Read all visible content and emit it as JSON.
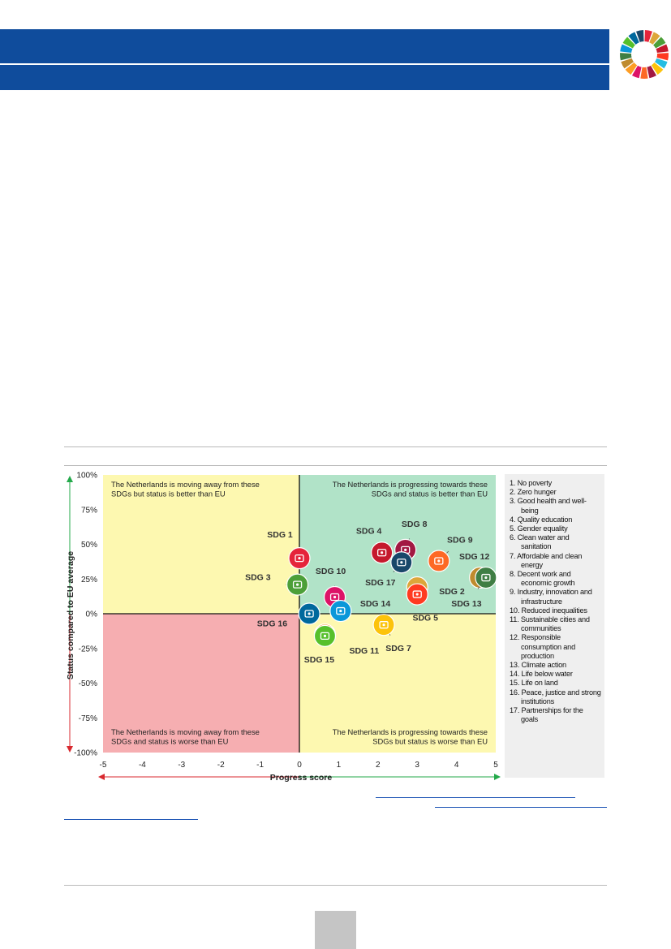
{
  "colors": {
    "header_blue": "#0f4c9c",
    "quadrant_yellow": "#fdf8b0",
    "quadrant_green": "#b1e3c8",
    "quadrant_red": "#f6aeb1",
    "arrow_green": "#23a94a",
    "arrow_red": "#d8292f",
    "link_blue": "#1f56b5"
  },
  "chart_data": {
    "type": "scatter",
    "xlabel": "Progress score",
    "ylabel": "Status compared to EU average",
    "xlim": [
      -5,
      5
    ],
    "ylim": [
      -100,
      100
    ],
    "x_ticks": [
      "-5",
      "-4",
      "-3",
      "-2",
      "-1",
      "0",
      "1",
      "2",
      "3",
      "4",
      "5"
    ],
    "y_ticks": [
      "100%",
      "75%",
      "50%",
      "25%",
      "0%",
      "-25%",
      "-50%",
      "-75%",
      "-100%"
    ],
    "grid": false,
    "quadrants": {
      "top_left": "The Netherlands is moving away from these SDGs but status is better than EU",
      "top_right": "The Netherlands is progressing towards these SDGs and status is better than EU",
      "bottom_left": "The Netherlands is moving away from these SDGs and status is worse than EU",
      "bottom_right": "The Netherlands is progressing towards these SDGs but status is worse than EU"
    },
    "points": [
      {
        "label": "SDG 1",
        "x": 0.0,
        "y": 40,
        "color": "#e5243b",
        "icon": "people-icon"
      },
      {
        "label": "SDG 2",
        "x": 3.0,
        "y": 19,
        "color": "#dda63a",
        "icon": "bowl-icon"
      },
      {
        "label": "SDG 3",
        "x": -0.05,
        "y": 21,
        "color": "#4c9f38",
        "icon": "heartbeat-icon"
      },
      {
        "label": "SDG 4",
        "x": 2.1,
        "y": 44,
        "color": "#c5192d",
        "icon": "book-icon"
      },
      {
        "label": "SDG 5",
        "x": 3.0,
        "y": 14,
        "color": "#ff3a21",
        "icon": "gender-icon"
      },
      {
        "label": "SDG 7",
        "x": 2.15,
        "y": -8,
        "color": "#fcc30b",
        "icon": "sun-icon"
      },
      {
        "label": "SDG 8",
        "x": 2.7,
        "y": 46,
        "color": "#a21942",
        "icon": "growth-icon"
      },
      {
        "label": "SDG 9",
        "x": 3.55,
        "y": 38,
        "color": "#fd6925",
        "icon": "cubes-icon"
      },
      {
        "label": "SDG 10",
        "x": 0.9,
        "y": 12,
        "color": "#dd1367",
        "icon": "equality-icon"
      },
      {
        "label": "SDG 11",
        "x": 0.65,
        "y": -15,
        "color": "#fd9d24",
        "icon": "buildings-icon"
      },
      {
        "label": "SDG 12",
        "x": 4.6,
        "y": 26,
        "color": "#bf8b2e",
        "icon": "infinity-icon"
      },
      {
        "label": "SDG 13",
        "x": 4.75,
        "y": 26,
        "color": "#3f7e44",
        "icon": "eye-icon"
      },
      {
        "label": "SDG 14",
        "x": 1.05,
        "y": 2,
        "color": "#0a97d9",
        "icon": "fish-icon"
      },
      {
        "label": "SDG 15",
        "x": 0.65,
        "y": -16,
        "color": "#56c02b",
        "icon": "tree-icon"
      },
      {
        "label": "SDG 16",
        "x": 0.25,
        "y": 0,
        "color": "#00689d",
        "icon": "dove-icon"
      },
      {
        "label": "SDG 17",
        "x": 2.6,
        "y": 37,
        "color": "#19486a",
        "icon": "flower-icon"
      }
    ],
    "legend": [
      "1. No poverty",
      "2. Zero hunger",
      "3. Good health and well-being",
      "4. Quality education",
      "5. Gender equality",
      "6. Clean water and sanitation",
      "7. Affordable and clean energy",
      "8. Decent work and economic growth",
      "9. Industry, innovation and infrastructure",
      "10. Reduced inequalities",
      "11. Sustainable cities and communities",
      "12. Responsible consumption and production",
      "13. Climate action",
      "14. Life below water",
      "15. Life on land",
      "16. Peace, justice and strong institutions",
      "17. Partnerships for the goals"
    ]
  }
}
